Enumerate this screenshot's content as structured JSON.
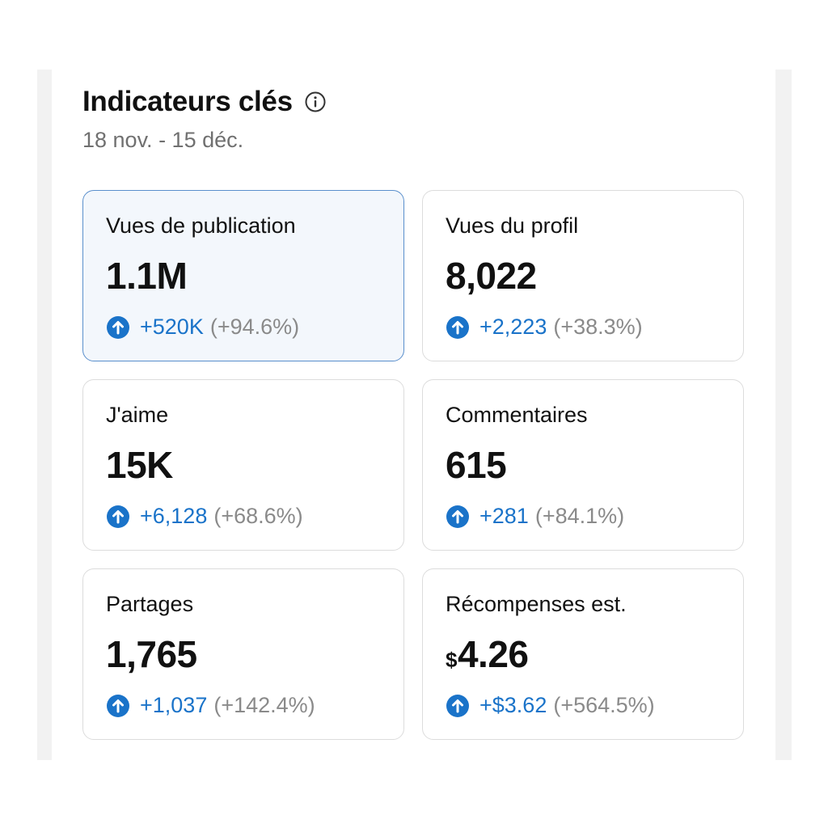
{
  "header": {
    "title": "Indicateurs clés",
    "date_range": "18 nov. - 15 déc."
  },
  "colors": {
    "accent": "#1a73c9",
    "selected_border": "#5a8fcc",
    "selected_bg": "#f3f7fc"
  },
  "metrics": [
    {
      "label": "Vues de publication",
      "value": "1.1M",
      "delta": "+520K",
      "pct": "(+94.6%)",
      "selected": true
    },
    {
      "label": "Vues du profil",
      "value": "8,022",
      "delta": "+2,223",
      "pct": "(+38.3%)"
    },
    {
      "label": "J'aime",
      "value": "15K",
      "delta": "+6,128",
      "pct": "(+68.6%)"
    },
    {
      "label": "Commentaires",
      "value": "615",
      "delta": "+281",
      "pct": "(+84.1%)"
    },
    {
      "label": "Partages",
      "value": "1,765",
      "delta": "+1,037",
      "pct": "(+142.4%)"
    },
    {
      "label": "Récompenses est.",
      "currency": "$",
      "value": "4.26",
      "delta": "+$3.62",
      "pct": "(+564.5%)"
    }
  ]
}
